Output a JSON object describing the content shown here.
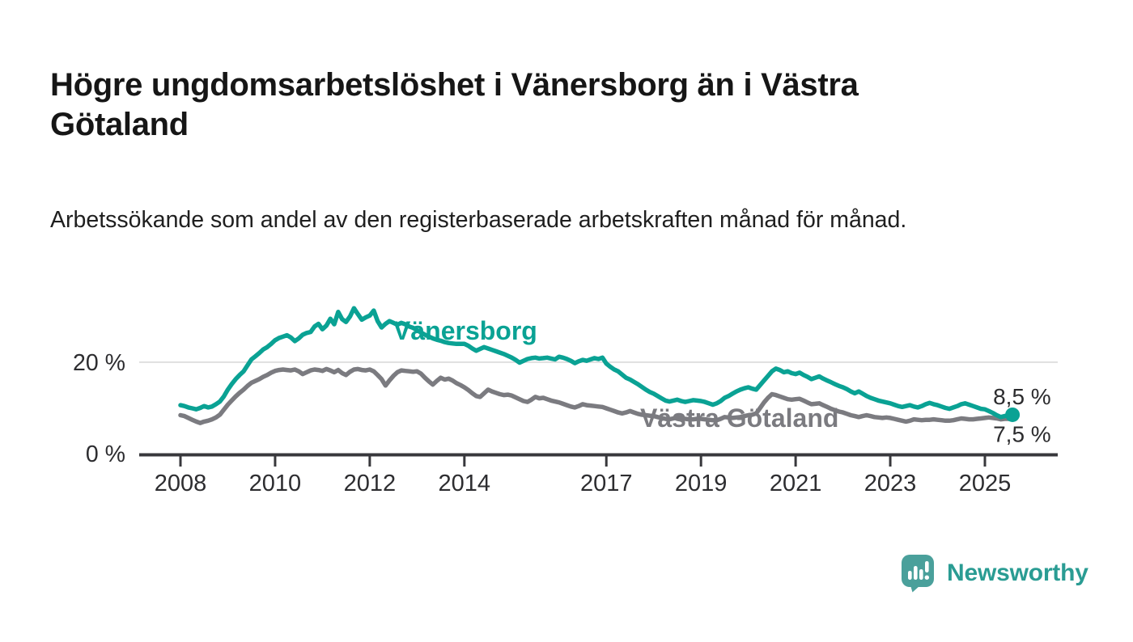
{
  "page": {
    "background": "#ffffff"
  },
  "header": {
    "title": "Högre ungdomsarbetslöshet i Vänersborg än i Västra Götaland",
    "subtitle": "Arbetssökande som andel av den registerbaserade arbetskraften månad för månad."
  },
  "chart_data": {
    "type": "line",
    "x_unit": "month",
    "start": "2008-01",
    "end": "2025-08",
    "grid": "horizontal line at 20 % only",
    "legend_position": "labels on lines",
    "ylim": [
      0,
      33
    ],
    "x_ticks": [
      "2008",
      "2010",
      "2012",
      "2014",
      "2017",
      "2019",
      "2021",
      "2023",
      "2025"
    ],
    "x_tick_years": [
      2008,
      2010,
      2012,
      2014,
      2017,
      2019,
      2021,
      2023,
      2025
    ],
    "y_ticks": [
      {
        "value": 0,
        "label": "0 %"
      },
      {
        "value": 20,
        "label": "20 %"
      }
    ],
    "series": [
      {
        "name": "Vänersborg",
        "color": "#0aa294",
        "end_label": "8,5 %",
        "end_value": 8.5,
        "end_dot": true,
        "values_monthly": [
          10.6,
          10.4,
          10.1,
          9.9,
          9.7,
          10.0,
          10.4,
          10.1,
          10.3,
          10.8,
          11.4,
          12.5,
          14.0,
          15.2,
          16.3,
          17.2,
          18.0,
          19.3,
          20.6,
          21.3,
          22.0,
          22.8,
          23.3,
          24.0,
          24.8,
          25.3,
          25.6,
          25.9,
          25.4,
          24.6,
          25.2,
          26.0,
          26.4,
          26.6,
          27.8,
          28.4,
          27.2,
          28.0,
          29.5,
          28.3,
          31.0,
          29.4,
          28.8,
          30.0,
          31.8,
          30.5,
          29.3,
          29.8,
          30.2,
          31.3,
          29.0,
          27.6,
          28.4,
          29.0,
          28.6,
          28.2,
          28.6,
          28.3,
          27.8,
          27.5,
          27.0,
          26.5,
          26.0,
          25.6,
          25.2,
          24.9,
          24.7,
          24.4,
          24.2,
          24.1,
          24.0,
          24.0,
          24.0,
          23.6,
          23.0,
          22.5,
          22.9,
          23.3,
          23.0,
          22.7,
          22.4,
          22.1,
          21.8,
          21.4,
          21.0,
          20.5,
          19.9,
          20.3,
          20.7,
          20.9,
          21.0,
          20.8,
          20.9,
          21.0,
          20.8,
          20.6,
          21.2,
          21.0,
          20.7,
          20.3,
          19.8,
          20.2,
          20.5,
          20.3,
          20.6,
          20.9,
          20.7,
          21.0,
          19.7,
          19.0,
          18.4,
          18.0,
          17.3,
          16.6,
          16.2,
          15.7,
          15.2,
          14.6,
          14.0,
          13.5,
          13.1,
          12.6,
          12.1,
          11.6,
          11.4,
          11.6,
          11.8,
          11.5,
          11.3,
          11.5,
          11.7,
          11.6,
          11.5,
          11.3,
          11.0,
          10.7,
          11.0,
          11.5,
          12.2,
          12.6,
          13.1,
          13.6,
          14.0,
          14.3,
          14.5,
          14.2,
          14.0,
          15.0,
          16.0,
          17.0,
          18.0,
          18.6,
          18.3,
          17.8,
          18.0,
          17.6,
          17.4,
          17.7,
          17.2,
          16.8,
          16.3,
          16.6,
          16.9,
          16.4,
          16.0,
          15.6,
          15.2,
          14.8,
          14.5,
          14.1,
          13.6,
          13.2,
          13.6,
          13.1,
          12.6,
          12.2,
          11.9,
          11.6,
          11.4,
          11.2,
          11.0,
          10.7,
          10.4,
          10.2,
          10.4,
          10.6,
          10.3,
          10.1,
          10.4,
          10.8,
          11.1,
          10.8,
          10.6,
          10.3,
          10.0,
          9.8,
          10.1,
          10.4,
          10.8,
          11.0,
          10.7,
          10.4,
          10.1,
          9.8,
          9.7,
          9.3,
          8.9,
          8.4,
          8.0,
          8.2,
          8.4,
          8.5
        ]
      },
      {
        "name": "Västra Götaland",
        "color": "#7b7b80",
        "end_label": "7,5 %",
        "end_value": 7.5,
        "end_dot": false,
        "values_monthly": [
          8.4,
          8.2,
          7.8,
          7.4,
          7.0,
          6.7,
          7.0,
          7.2,
          7.5,
          7.9,
          8.5,
          9.6,
          10.7,
          11.6,
          12.5,
          13.3,
          14.0,
          14.8,
          15.5,
          15.9,
          16.3,
          16.8,
          17.2,
          17.7,
          18.1,
          18.3,
          18.4,
          18.3,
          18.2,
          18.4,
          18.0,
          17.4,
          17.8,
          18.2,
          18.4,
          18.3,
          18.1,
          18.5,
          18.2,
          17.8,
          18.3,
          17.6,
          17.2,
          17.9,
          18.4,
          18.5,
          18.3,
          18.2,
          18.4,
          18.0,
          17.2,
          16.3,
          14.9,
          16.0,
          17.0,
          17.8,
          18.2,
          18.1,
          18.0,
          17.9,
          18.0,
          17.5,
          16.6,
          15.8,
          15.1,
          15.9,
          16.6,
          16.2,
          16.4,
          16.0,
          15.4,
          15.0,
          14.5,
          13.9,
          13.2,
          12.6,
          12.4,
          13.2,
          14.0,
          13.6,
          13.3,
          13.0,
          12.8,
          12.9,
          12.7,
          12.3,
          11.9,
          11.5,
          11.3,
          11.8,
          12.4,
          12.1,
          12.2,
          11.9,
          11.6,
          11.4,
          11.2,
          10.9,
          10.6,
          10.3,
          10.1,
          10.4,
          10.8,
          10.6,
          10.5,
          10.4,
          10.3,
          10.2,
          9.9,
          9.6,
          9.3,
          9.0,
          8.8,
          9.0,
          9.3,
          9.0,
          8.7,
          8.5,
          8.4,
          8.3,
          8.2,
          8.0,
          7.8,
          7.6,
          7.5,
          7.7,
          8.0,
          7.8,
          7.6,
          7.5,
          7.5,
          7.6,
          7.6,
          7.5,
          7.4,
          7.3,
          7.3,
          7.6,
          8.0,
          7.9,
          7.8,
          7.9,
          8.0,
          8.2,
          8.4,
          8.5,
          8.8,
          10.0,
          11.2,
          12.2,
          13.0,
          12.8,
          12.5,
          12.2,
          11.9,
          11.8,
          11.9,
          12.0,
          11.6,
          11.2,
          10.8,
          10.9,
          11.0,
          10.6,
          10.2,
          9.8,
          9.5,
          9.2,
          9.0,
          8.7,
          8.4,
          8.2,
          8.0,
          8.2,
          8.4,
          8.2,
          8.0,
          7.9,
          7.8,
          7.9,
          7.8,
          7.6,
          7.4,
          7.2,
          7.0,
          7.2,
          7.5,
          7.4,
          7.3,
          7.4,
          7.4,
          7.5,
          7.4,
          7.3,
          7.2,
          7.2,
          7.3,
          7.5,
          7.7,
          7.6,
          7.5,
          7.5,
          7.6,
          7.7,
          7.8,
          7.9,
          7.8,
          7.7,
          7.5,
          7.6,
          7.6,
          7.5
        ]
      }
    ],
    "colors": {
      "grid": "#d9d9d9",
      "axis": "#38383c",
      "tick_label": "#2d2d30",
      "end_label": "#2c2c2e"
    }
  },
  "logo": {
    "text": "Newsworthy",
    "icon": "bar-chart-speech-bubble-icon",
    "icon_color": "#4aa09b",
    "text_color": "#2a9c93"
  }
}
